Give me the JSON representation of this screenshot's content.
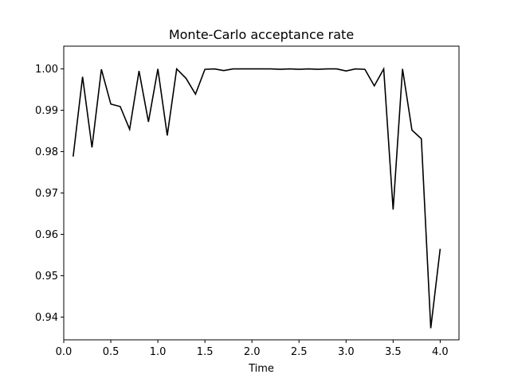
{
  "chart_data": {
    "type": "line",
    "title": "Monte-Carlo acceptance rate",
    "xlabel": "Time",
    "ylabel": "",
    "xlim": [
      -0.0,
      4.2
    ],
    "ylim": [
      0.9345,
      1.0055
    ],
    "xticks": [
      0.0,
      0.5,
      1.0,
      1.5,
      2.0,
      2.5,
      3.0,
      3.5,
      4.0
    ],
    "xtick_labels": [
      "0.0",
      "0.5",
      "1.0",
      "1.5",
      "2.0",
      "2.5",
      "3.0",
      "3.5",
      "4.0"
    ],
    "yticks": [
      0.94,
      0.95,
      0.96,
      0.97,
      0.98,
      0.99,
      1.0
    ],
    "ytick_labels": [
      "0.94",
      "0.95",
      "0.96",
      "0.97",
      "0.98",
      "0.99",
      "1.00"
    ],
    "grid": false,
    "series": [
      {
        "color": "#000000",
        "x": [
          0.1,
          0.2,
          0.3,
          0.4,
          0.5,
          0.6,
          0.7,
          0.8,
          0.9,
          1.0,
          1.1,
          1.2,
          1.3,
          1.4,
          1.5,
          1.6,
          1.7,
          1.8,
          1.9,
          2.0,
          2.1,
          2.2,
          2.3,
          2.4,
          2.5,
          2.6,
          2.7,
          2.8,
          2.9,
          3.0,
          3.1,
          3.2,
          3.3,
          3.4,
          3.5,
          3.6,
          3.7,
          3.8,
          3.9,
          4.0
        ],
        "y": [
          0.9788,
          0.9981,
          0.981,
          0.9999,
          0.9915,
          0.9909,
          0.9854,
          0.9995,
          0.9872,
          1.0,
          0.9839,
          1.0,
          0.9977,
          0.9939,
          0.9999,
          1.0,
          0.9996,
          1.0,
          1.0,
          1.0,
          1.0,
          1.0,
          0.9999,
          1.0,
          0.9999,
          1.0,
          0.9999,
          1.0,
          1.0,
          0.9995,
          1.0,
          0.9999,
          0.9959,
          1.0,
          0.966,
          1.0,
          0.9852,
          0.9831,
          0.9373,
          0.9565
        ]
      }
    ]
  }
}
